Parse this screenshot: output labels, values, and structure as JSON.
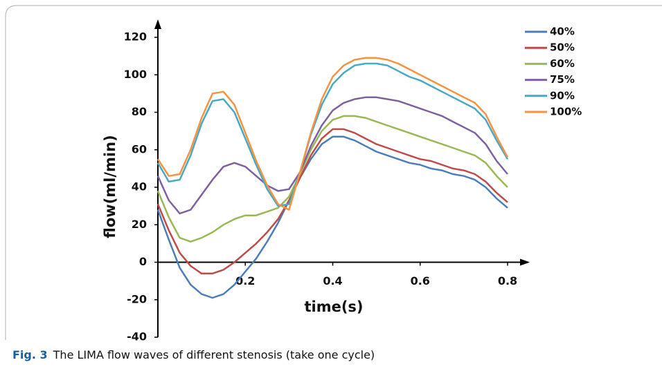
{
  "chart_data": {
    "type": "line",
    "xlabel": "time(s)",
    "ylabel": "flow(ml/min)",
    "x": [
      0,
      0.025,
      0.05,
      0.075,
      0.1,
      0.125,
      0.15,
      0.175,
      0.2,
      0.225,
      0.25,
      0.275,
      0.3,
      0.325,
      0.35,
      0.375,
      0.4,
      0.425,
      0.45,
      0.475,
      0.5,
      0.525,
      0.55,
      0.575,
      0.6,
      0.625,
      0.65,
      0.675,
      0.7,
      0.725,
      0.75,
      0.775,
      0.8
    ],
    "series": [
      {
        "name": "40%",
        "color": "#4a7ebb",
        "values": [
          28,
          12,
          -3,
          -12,
          -17,
          -19,
          -17,
          -12,
          -5,
          2,
          11,
          21,
          33,
          45,
          55,
          63,
          67,
          67,
          65,
          62,
          59,
          57,
          55,
          53,
          52,
          50,
          49,
          47,
          46,
          44,
          40,
          34,
          29
        ]
      },
      {
        "name": "50%",
        "color": "#be4b48",
        "values": [
          31,
          17,
          5,
          -2,
          -6,
          -6,
          -4,
          0,
          5,
          10,
          16,
          23,
          33,
          45,
          57,
          66,
          71,
          71,
          69,
          66,
          63,
          61,
          59,
          57,
          55,
          54,
          52,
          50,
          49,
          47,
          43,
          37,
          32
        ]
      },
      {
        "name": "60%",
        "color": "#98b954",
        "values": [
          38,
          24,
          13,
          11,
          13,
          16,
          20,
          23,
          25,
          25,
          27,
          29,
          35,
          47,
          60,
          70,
          76,
          78,
          78,
          77,
          75,
          73,
          71,
          69,
          67,
          65,
          63,
          61,
          59,
          57,
          53,
          46,
          40
        ]
      },
      {
        "name": "75%",
        "color": "#7d60a0",
        "values": [
          46,
          33,
          26,
          28,
          36,
          44,
          51,
          53,
          51,
          46,
          41,
          38,
          39,
          48,
          62,
          73,
          81,
          85,
          87,
          88,
          88,
          87,
          86,
          84,
          82,
          80,
          78,
          75,
          72,
          69,
          63,
          54,
          47
        ]
      },
      {
        "name": "90%",
        "color": "#46aac5",
        "values": [
          53,
          43,
          44,
          57,
          74,
          86,
          87,
          80,
          66,
          52,
          39,
          30,
          31,
          48,
          68,
          84,
          95,
          101,
          105,
          106,
          106,
          105,
          102,
          99,
          97,
          94,
          91,
          88,
          85,
          82,
          76,
          65,
          55
        ]
      },
      {
        "name": "100%",
        "color": "#f69240",
        "values": [
          55,
          46,
          47,
          60,
          77,
          90,
          91,
          84,
          69,
          54,
          41,
          31,
          28,
          48,
          69,
          87,
          99,
          105,
          108,
          109,
          109,
          108,
          106,
          103,
          100,
          97,
          94,
          91,
          88,
          85,
          79,
          67,
          56
        ]
      }
    ],
    "xlim": [
      0,
      0.8
    ],
    "xticks": [
      0.2,
      0.4,
      0.6,
      0.8
    ],
    "ylim": [
      -40,
      120
    ],
    "yticks": [
      -40,
      -20,
      0,
      20,
      40,
      60,
      80,
      100,
      120
    ],
    "grid": false,
    "legend": "right"
  },
  "figure": {
    "label": "Fig. 3",
    "caption": "The LIMA flow waves of different stenosis (take one cycle)"
  }
}
